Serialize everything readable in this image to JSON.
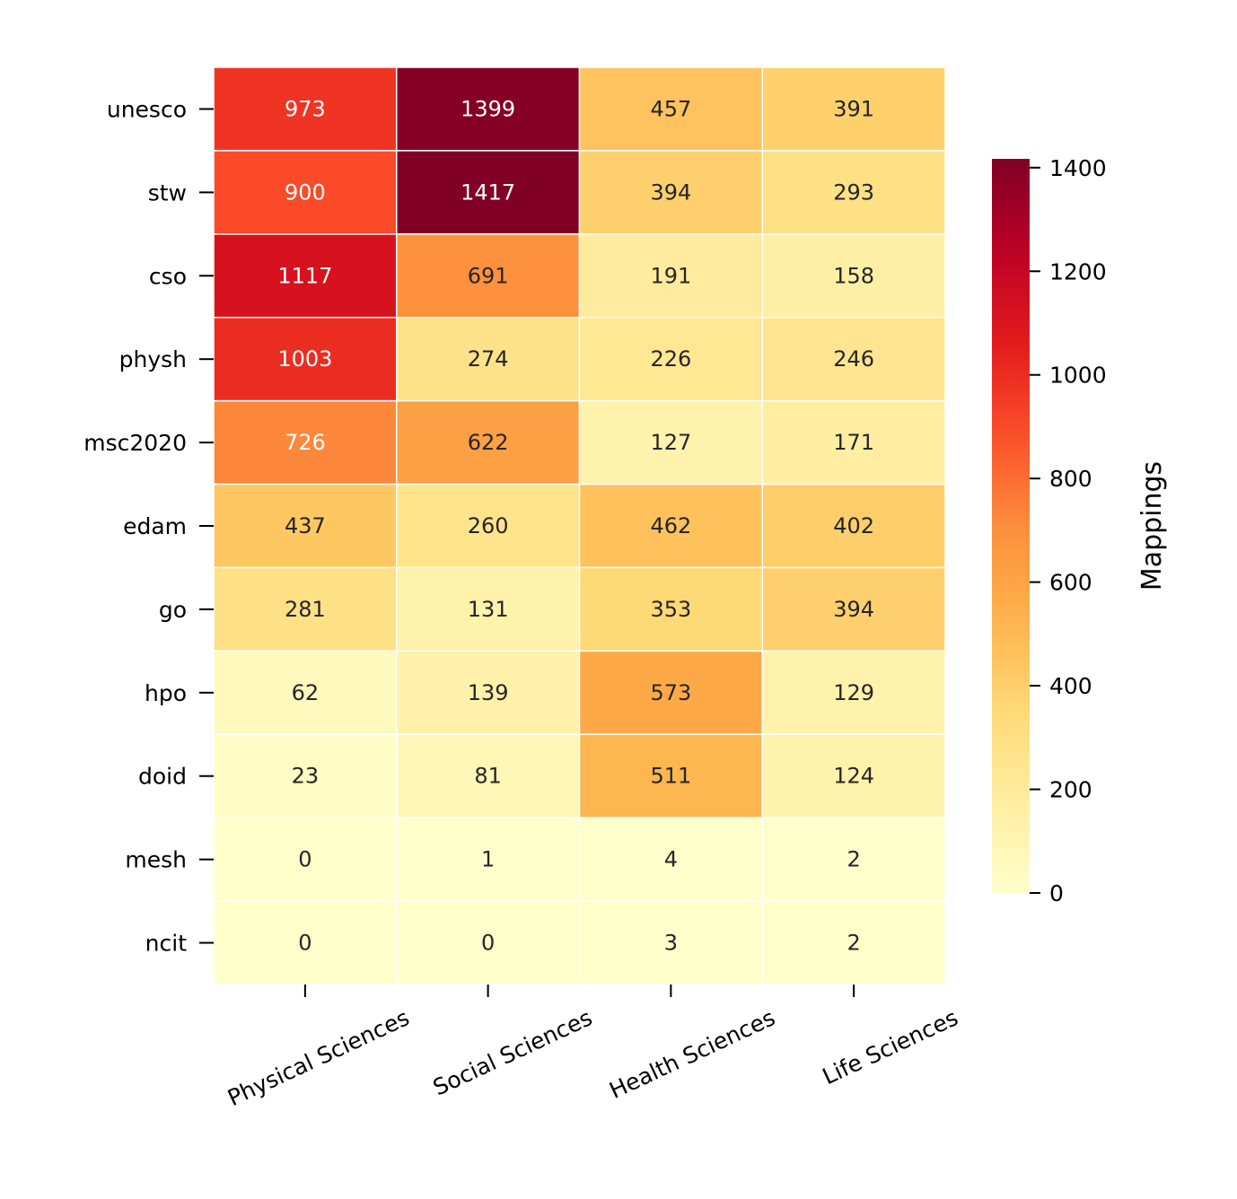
{
  "chart_data": {
    "type": "heatmap",
    "rows": [
      "unesco",
      "stw",
      "cso",
      "physh",
      "msc2020",
      "edam",
      "go",
      "hpo",
      "doid",
      "mesh",
      "ncit"
    ],
    "columns": [
      "Physical Sciences",
      "Social Sciences",
      "Health Sciences",
      "Life Sciences"
    ],
    "values": [
      [
        973,
        1399,
        457,
        391
      ],
      [
        900,
        1417,
        394,
        293
      ],
      [
        1117,
        691,
        191,
        158
      ],
      [
        1003,
        274,
        226,
        246
      ],
      [
        726,
        622,
        127,
        171
      ],
      [
        437,
        260,
        462,
        402
      ],
      [
        281,
        131,
        353,
        394
      ],
      [
        62,
        139,
        573,
        129
      ],
      [
        23,
        81,
        511,
        124
      ],
      [
        0,
        1,
        4,
        2
      ],
      [
        0,
        0,
        3,
        2
      ]
    ],
    "colormap": "YlOrRd",
    "vmin": 0,
    "vmax": 1417,
    "colorbar": {
      "label": "Mappings",
      "ticks": [
        0,
        200,
        400,
        600,
        800,
        1000,
        1200,
        1400
      ]
    },
    "annotated": true
  }
}
